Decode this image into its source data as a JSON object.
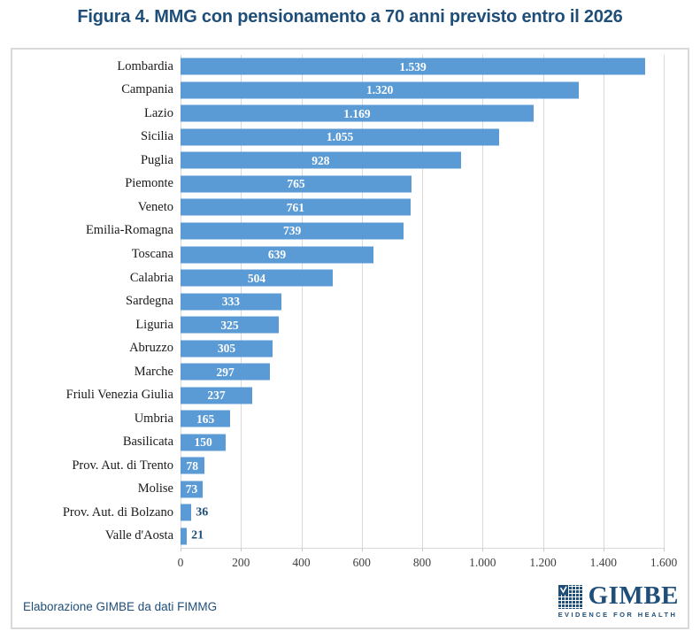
{
  "page": {
    "title": "Figura 4. MMG con pensionamento a 70 anni previsto entro il 2026"
  },
  "chart_data": {
    "type": "bar",
    "orientation": "horizontal",
    "title": "Figura 4. MMG con pensionamento a 70 anni previsto entro il 2026",
    "categories": [
      "Lombardia",
      "Campania",
      "Lazio",
      "Sicilia",
      "Puglia",
      "Piemonte",
      "Veneto",
      "Emilia-Romagna",
      "Toscana",
      "Calabria",
      "Sardegna",
      "Liguria",
      "Abruzzo",
      "Marche",
      "Friuli Venezia Giulia",
      "Umbria",
      "Basilicata",
      "Prov. Aut. di Trento",
      "Molise",
      "Prov. Aut. di Bolzano",
      "Valle d'Aosta"
    ],
    "values": [
      1539,
      1320,
      1169,
      1055,
      928,
      765,
      761,
      739,
      639,
      504,
      333,
      325,
      305,
      297,
      237,
      165,
      150,
      78,
      73,
      36,
      21
    ],
    "value_labels": [
      "1.539",
      "1.320",
      "1.169",
      "1.055",
      "928",
      "765",
      "761",
      "739",
      "639",
      "504",
      "333",
      "325",
      "305",
      "297",
      "237",
      "165",
      "150",
      "78",
      "73",
      "36",
      "21"
    ],
    "x_ticks": [
      "0",
      "200",
      "400",
      "600",
      "800",
      "1.000",
      "1.200",
      "1.400",
      "1.600"
    ],
    "xlim": [
      0,
      1600
    ],
    "grid": true,
    "legend": "none",
    "xlabel": "",
    "ylabel": ""
  },
  "footer": {
    "source": "Elaborazione GIMBE da dati FIMMG"
  },
  "logo": {
    "name": "GIMBE",
    "tagline": "EVIDENCE FOR HEALTH"
  },
  "colors": {
    "accent": "#1F4E79",
    "bar": "#5B9BD5",
    "grid": "#D9D9D9",
    "border": "#D9D9D9",
    "value_label_inside": "#FFFFFF",
    "value_label_outside": "#1F4E79"
  }
}
